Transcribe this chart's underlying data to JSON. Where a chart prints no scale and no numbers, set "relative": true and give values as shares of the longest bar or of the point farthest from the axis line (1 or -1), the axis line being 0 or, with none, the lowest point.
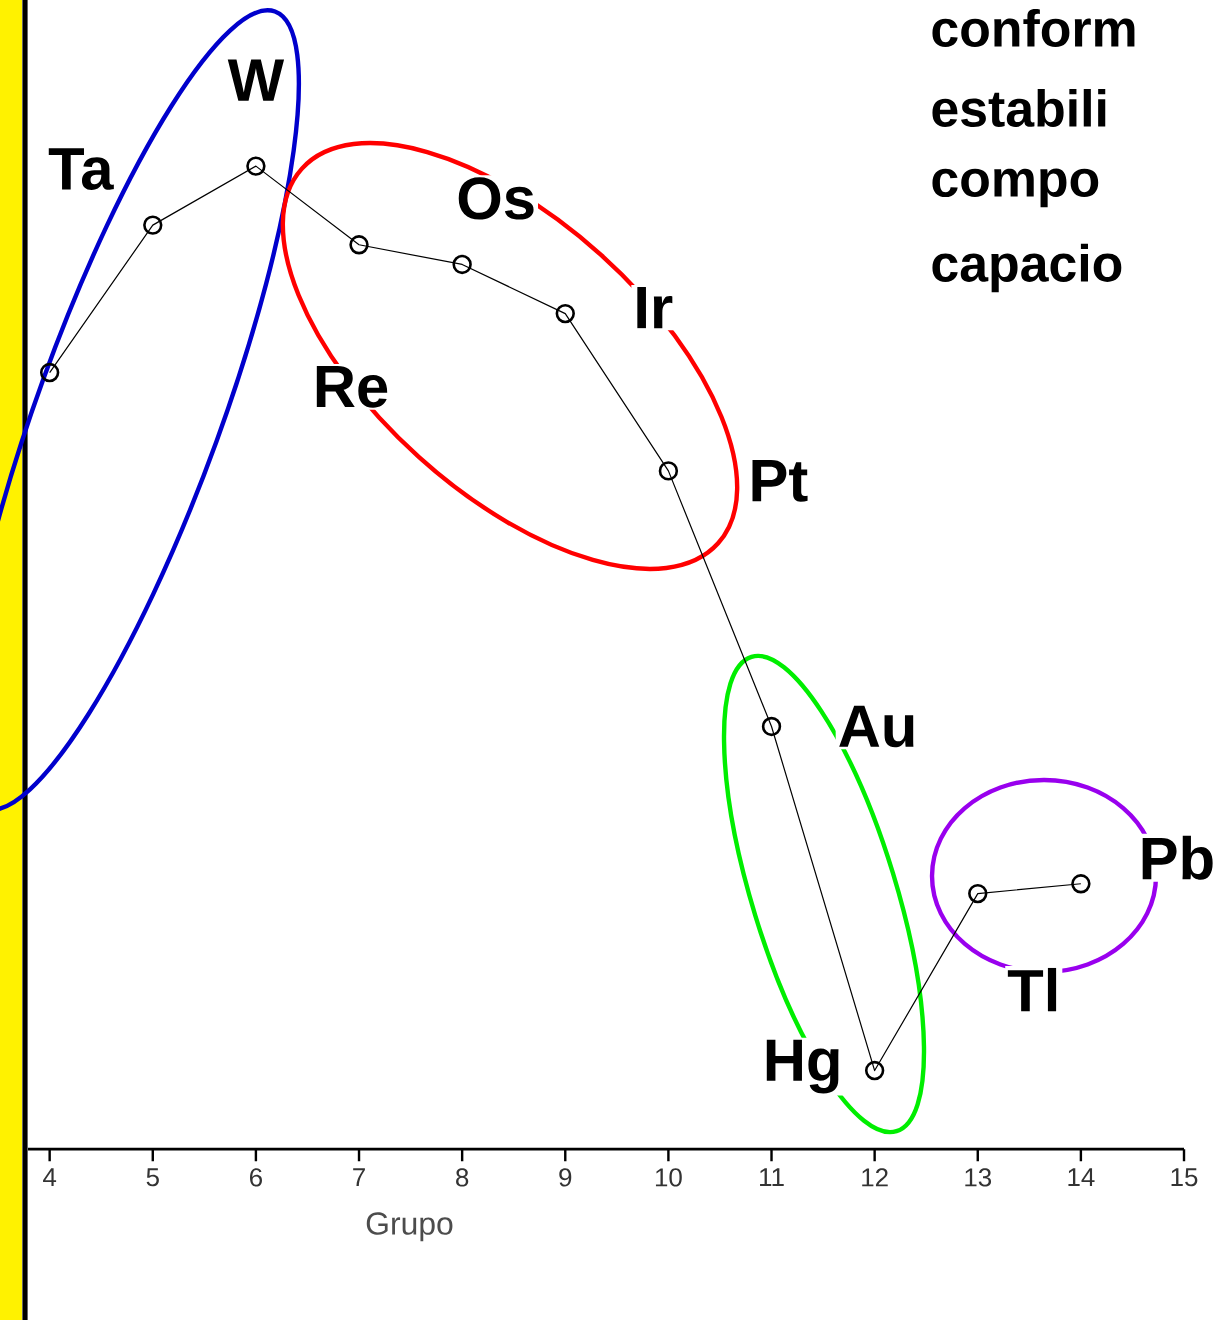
{
  "chart_data": {
    "type": "line",
    "relative": true,
    "x": [
      4,
      5,
      6,
      7,
      8,
      9,
      10,
      11,
      12,
      13,
      14
    ],
    "series": [
      {
        "color": "#000000",
        "values": [
          0.79,
          0.94,
          1,
          0.92,
          0.9,
          0.85,
          0.69,
          0.43,
          0.08,
          0.26,
          0.27
        ]
      }
    ],
    "xlim": [
      3.79,
      15
    ],
    "xticks": [
      4,
      5,
      6,
      7,
      8,
      9,
      10,
      11,
      12,
      13,
      14,
      15
    ],
    "xlabel": "Grupo",
    "tick_labels": "x",
    "marker": "circle",
    "line_style": "solid",
    "annotations": [
      {
        "text": "Ta",
        "x": 5,
        "y": 0.94
      },
      {
        "text": "W",
        "x": 6,
        "y": 1
      },
      {
        "text": "Re",
        "x": 7,
        "y": 0.92
      },
      {
        "text": "Os",
        "x": 8,
        "y": 0.9
      },
      {
        "text": "Ir",
        "x": 9,
        "y": 0.85
      },
      {
        "text": "Pt",
        "x": 10,
        "y": 0.69
      },
      {
        "text": "Au",
        "x": 11,
        "y": 0.43
      },
      {
        "text": "Hg",
        "x": 12,
        "y": 0.08
      },
      {
        "text": "Tl",
        "x": 13,
        "y": 0.26
      },
      {
        "text": "Pb",
        "x": 14,
        "y": 0.27
      },
      "conform",
      "estabili",
      "compo",
      "capacio"
    ]
  }
}
